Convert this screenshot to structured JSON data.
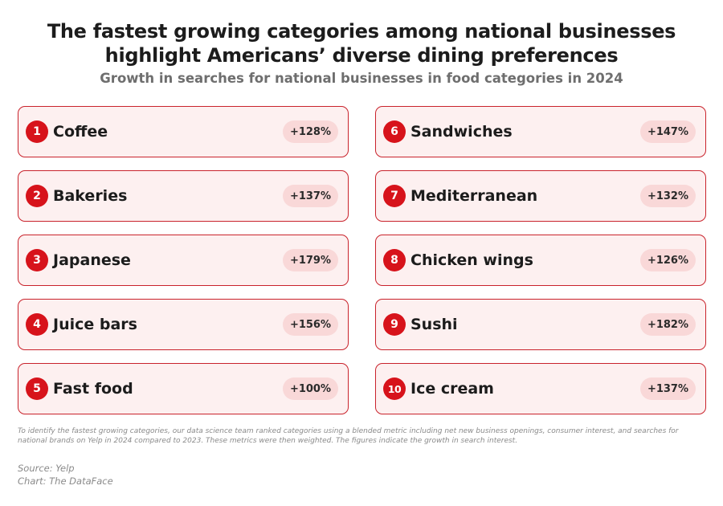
{
  "title": "The fastest growing categories among national businesses highlight Americans’ diverse dining preferences",
  "subtitle": "Growth in searches for national businesses in food categories in 2024",
  "chart_data": {
    "type": "table",
    "title": "The fastest growing categories among national businesses highlight Americans’ diverse dining preferences",
    "subtitle": "Growth in searches for national businesses in food categories in 2024",
    "items": [
      {
        "rank": "1",
        "category": "Coffee",
        "growth_label": "+128%",
        "growth": 128
      },
      {
        "rank": "2",
        "category": "Bakeries",
        "growth_label": "+137%",
        "growth": 137
      },
      {
        "rank": "3",
        "category": "Japanese",
        "growth_label": "+179%",
        "growth": 179
      },
      {
        "rank": "4",
        "category": "Juice bars",
        "growth_label": "+156%",
        "growth": 156
      },
      {
        "rank": "5",
        "category": "Fast food",
        "growth_label": "+100%",
        "growth": 100
      },
      {
        "rank": "6",
        "category": "Sandwiches",
        "growth_label": "+147%",
        "growth": 147
      },
      {
        "rank": "7",
        "category": "Mediterranean",
        "growth_label": "+132%",
        "growth": 132
      },
      {
        "rank": "8",
        "category": "Chicken wings",
        "growth_label": "+126%",
        "growth": 126
      },
      {
        "rank": "9",
        "category": "Sushi",
        "growth_label": "+182%",
        "growth": 182
      },
      {
        "rank": "10",
        "category": "Ice cream",
        "growth_label": "+137%",
        "growth": 137
      }
    ]
  },
  "footnote": "To identify the fastest growing categories, our data science team ranked categories using a blended metric including net new business openings, consumer interest, and searches for national brands on Yelp in 2024 compared to 2023. These metrics were then weighted. The figures indicate the growth in search interest.",
  "source": "Source: Yelp",
  "credit": "Chart: The DataFace",
  "colors": {
    "accent": "#d7131b",
    "card_border": "#c9232c",
    "card_bg": "#fdf0f0",
    "pill_bg": "#f9d8d8"
  }
}
